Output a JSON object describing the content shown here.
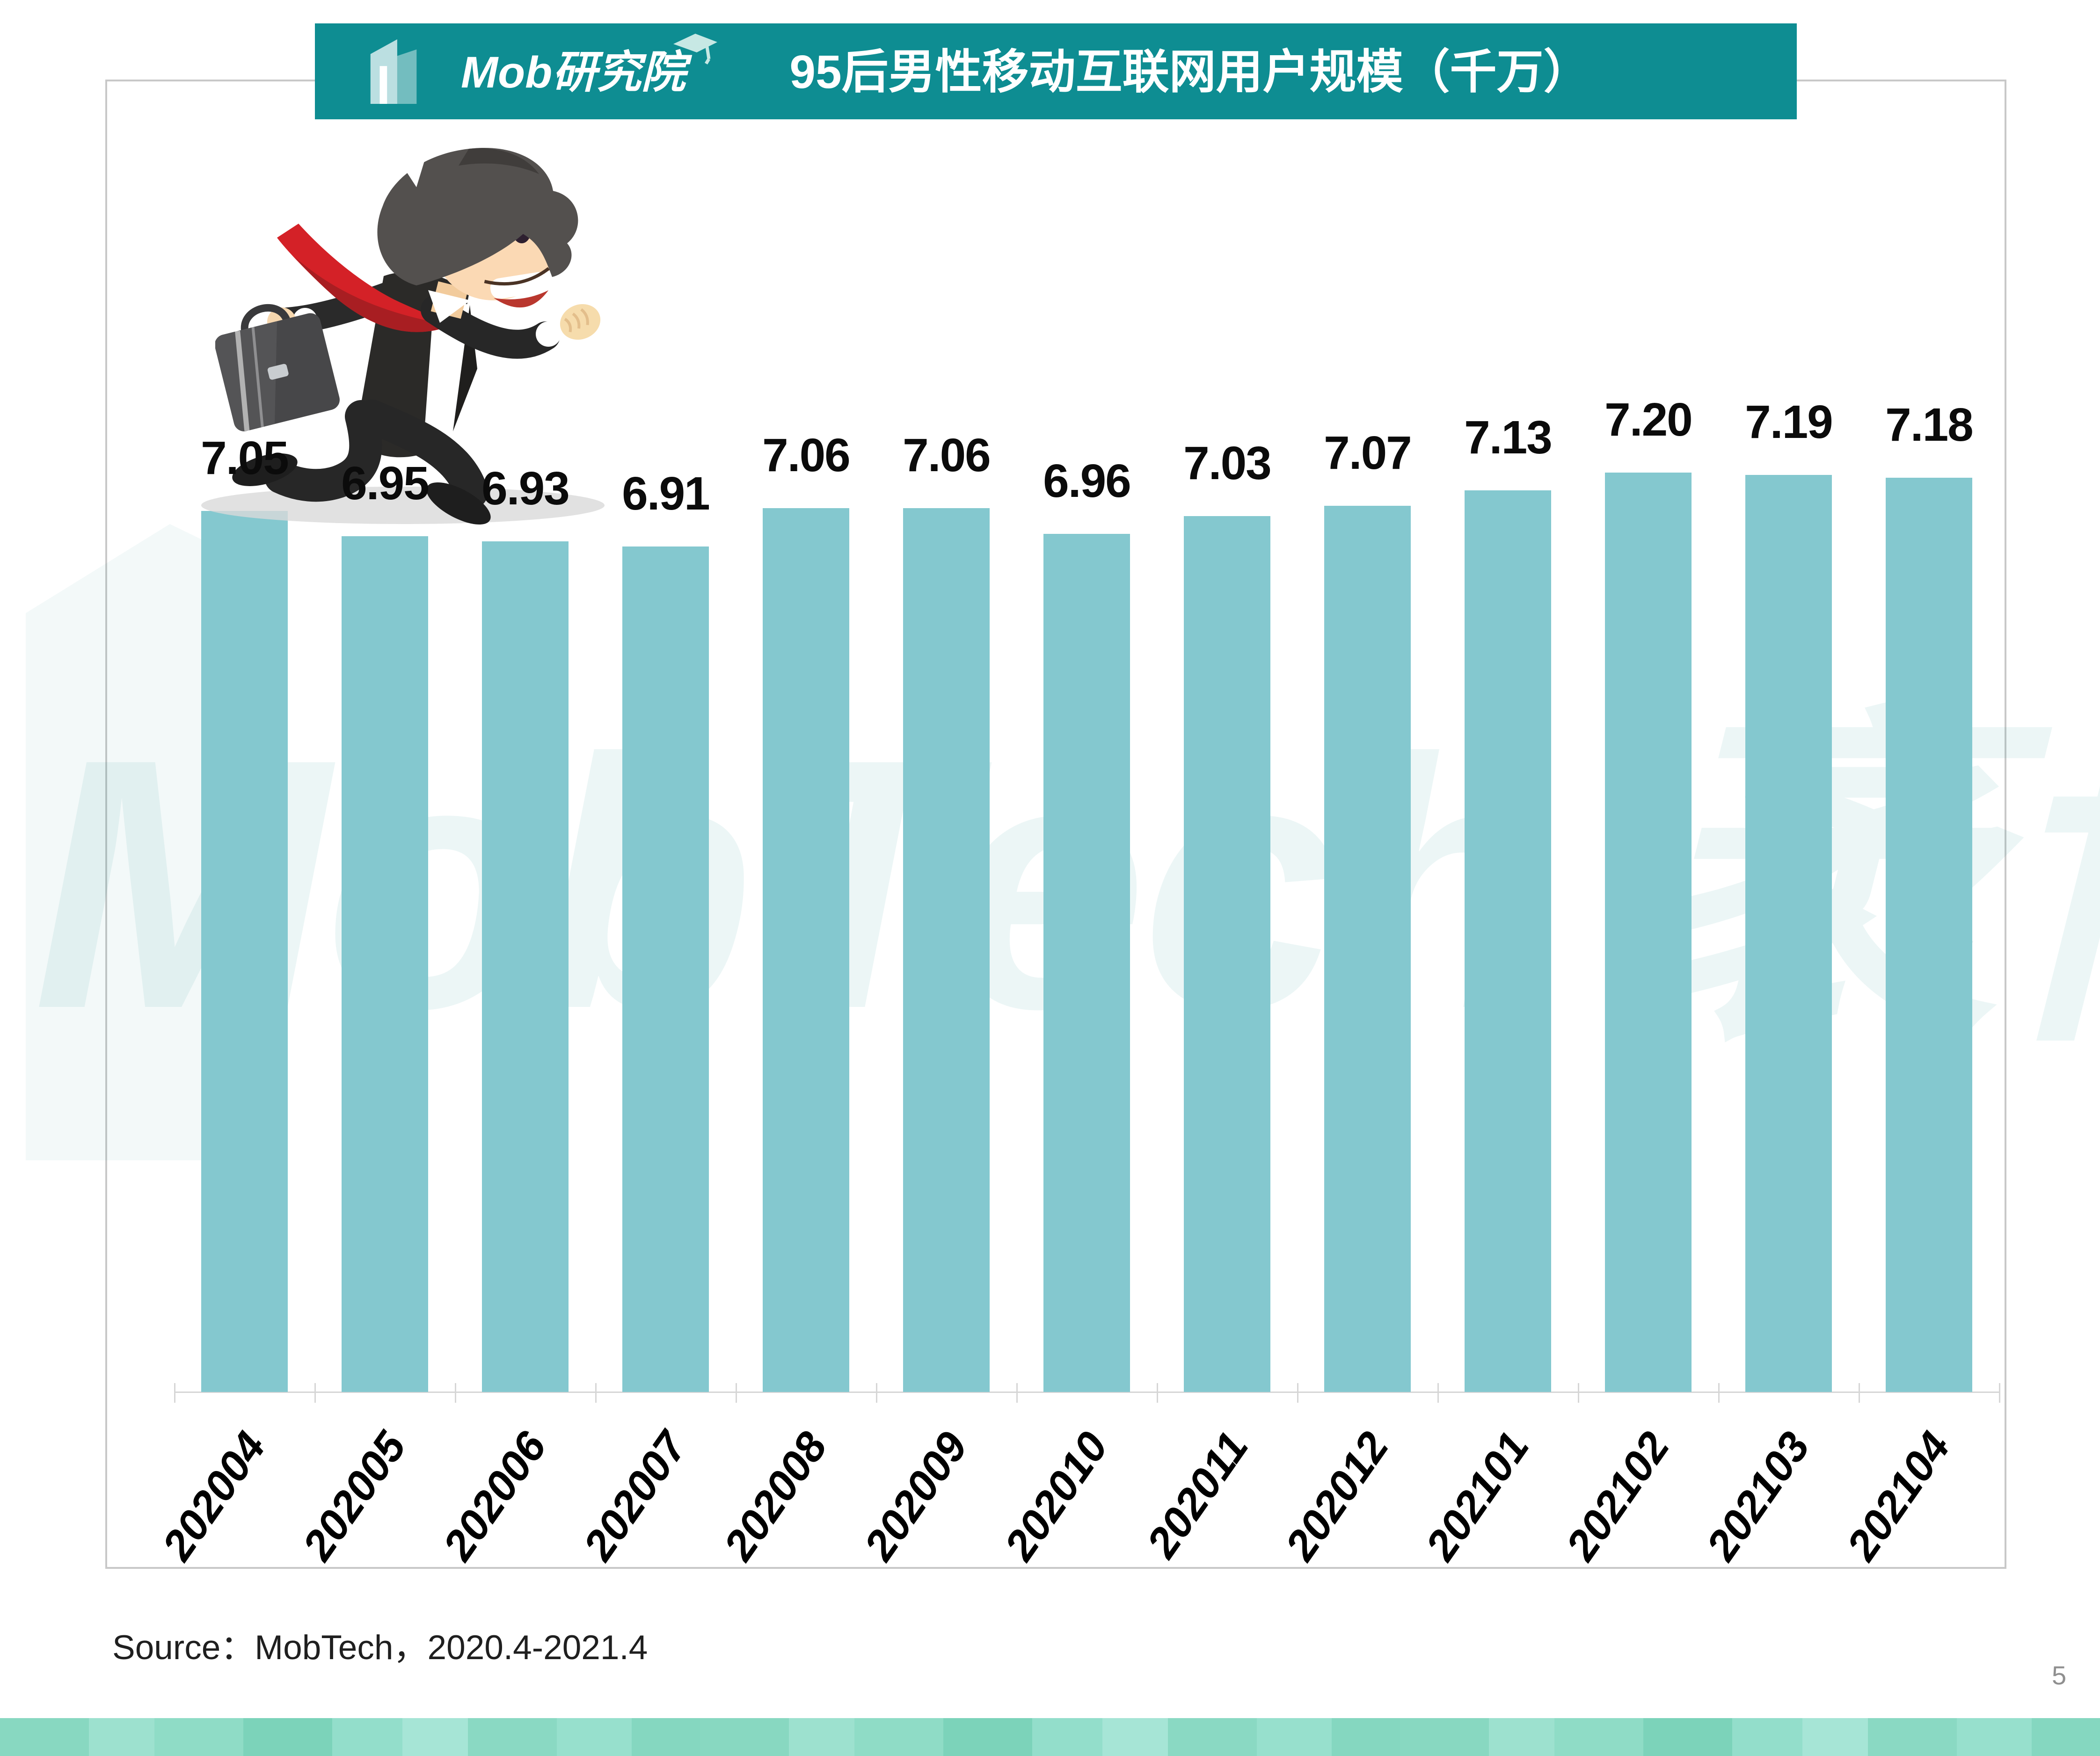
{
  "header": {
    "logo_text": "Mob研究院",
    "title": "95后男性移动互联网用户规模（千万）"
  },
  "chart_data": {
    "type": "bar",
    "title": "95后男性移动互联网用户规模（千万）",
    "unit": "千万",
    "categories": [
      "202004",
      "202005",
      "202006",
      "202007",
      "202008",
      "202009",
      "202010",
      "202011",
      "202012",
      "202101",
      "202102",
      "202103",
      "202104"
    ],
    "values": [
      7.05,
      6.95,
      6.93,
      6.91,
      7.06,
      7.06,
      6.96,
      7.03,
      7.07,
      7.13,
      7.2,
      7.19,
      7.18
    ],
    "value_labels": [
      "7.05",
      "6.95",
      "6.93",
      "6.91",
      "7.06",
      "7.06",
      "6.96",
      "7.03",
      "7.07",
      "7.13",
      "7.20",
      "7.19",
      "7.18"
    ],
    "xlabel": "",
    "ylabel": "",
    "ylim": [
      3.6,
      7.2
    ],
    "grid": false,
    "legend": "none",
    "bar_color": "#84C8CF"
  },
  "watermark": {
    "text": "MobTech 袤博"
  },
  "footer": {
    "source_note": "Source：MobTech，2020.4-2021.4",
    "page_number": "5"
  },
  "colors": {
    "header_teal": "#0E8D92",
    "bar_fill": "#84C8CF",
    "panel_border": "#C8C8C8",
    "axis_gray": "#D6D6D6",
    "shadow_gray": "#D9D9D9",
    "tie_red": "#D42127",
    "footer_mint": "#8ad9c3"
  }
}
